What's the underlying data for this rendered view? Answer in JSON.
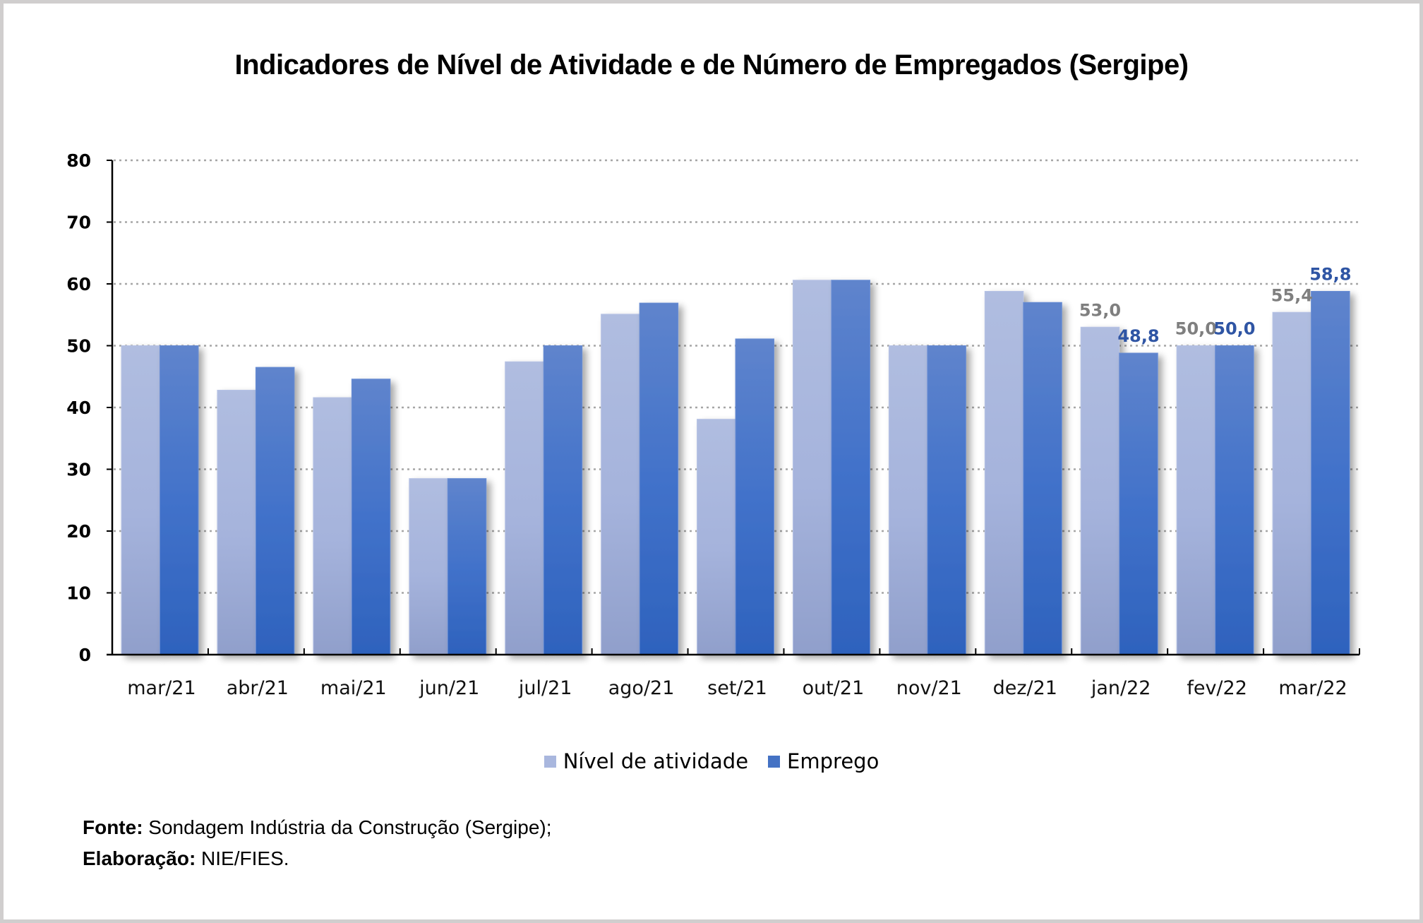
{
  "chart_data": {
    "type": "bar",
    "title": "Indicadores de Nível de Atividade e de Número de Empregados (Sergipe)",
    "xlabel": "",
    "ylabel": "",
    "ylim": [
      0,
      80
    ],
    "yticks": [
      "0",
      "10",
      "20",
      "30",
      "40",
      "50",
      "60",
      "70",
      "80"
    ],
    "grid": true,
    "legend_position": "bottom",
    "categories": [
      "mar/21",
      "abr/21",
      "mai/21",
      "jun/21",
      "jul/21",
      "ago/21",
      "set/21",
      "out/21",
      "nov/21",
      "dez/21",
      "jan/22",
      "fev/22",
      "mar/22"
    ],
    "series": [
      {
        "name": "Nível de atividade",
        "color": "#a9b7de",
        "label_color": "#7f7f7f",
        "values": [
          50.0,
          42.8,
          41.6,
          28.5,
          47.4,
          55.1,
          38.1,
          60.6,
          50.0,
          58.8,
          53.0,
          50.0,
          55.4
        ],
        "data_labels": [
          "",
          "",
          "",
          "",
          "",
          "",
          "",
          "",
          "",
          "",
          "53,0",
          "50,0",
          "55,4"
        ]
      },
      {
        "name": "Emprego",
        "color": "#4472c4",
        "label_color": "#2f55a4",
        "values": [
          50.0,
          46.5,
          44.6,
          28.5,
          50.0,
          56.9,
          51.1,
          60.6,
          50.0,
          57.0,
          48.8,
          50.0,
          58.8
        ],
        "data_labels": [
          "",
          "",
          "",
          "",
          "",
          "",
          "",
          "",
          "",
          "",
          "48,8",
          "50,0",
          "58,8"
        ]
      }
    ]
  },
  "footer": {
    "source_label": "Fonte:",
    "source_text": " Sondagem Indústria da Construção (Sergipe);",
    "credit_label": "Elaboração:",
    "credit_text": " NIE/FIES."
  }
}
